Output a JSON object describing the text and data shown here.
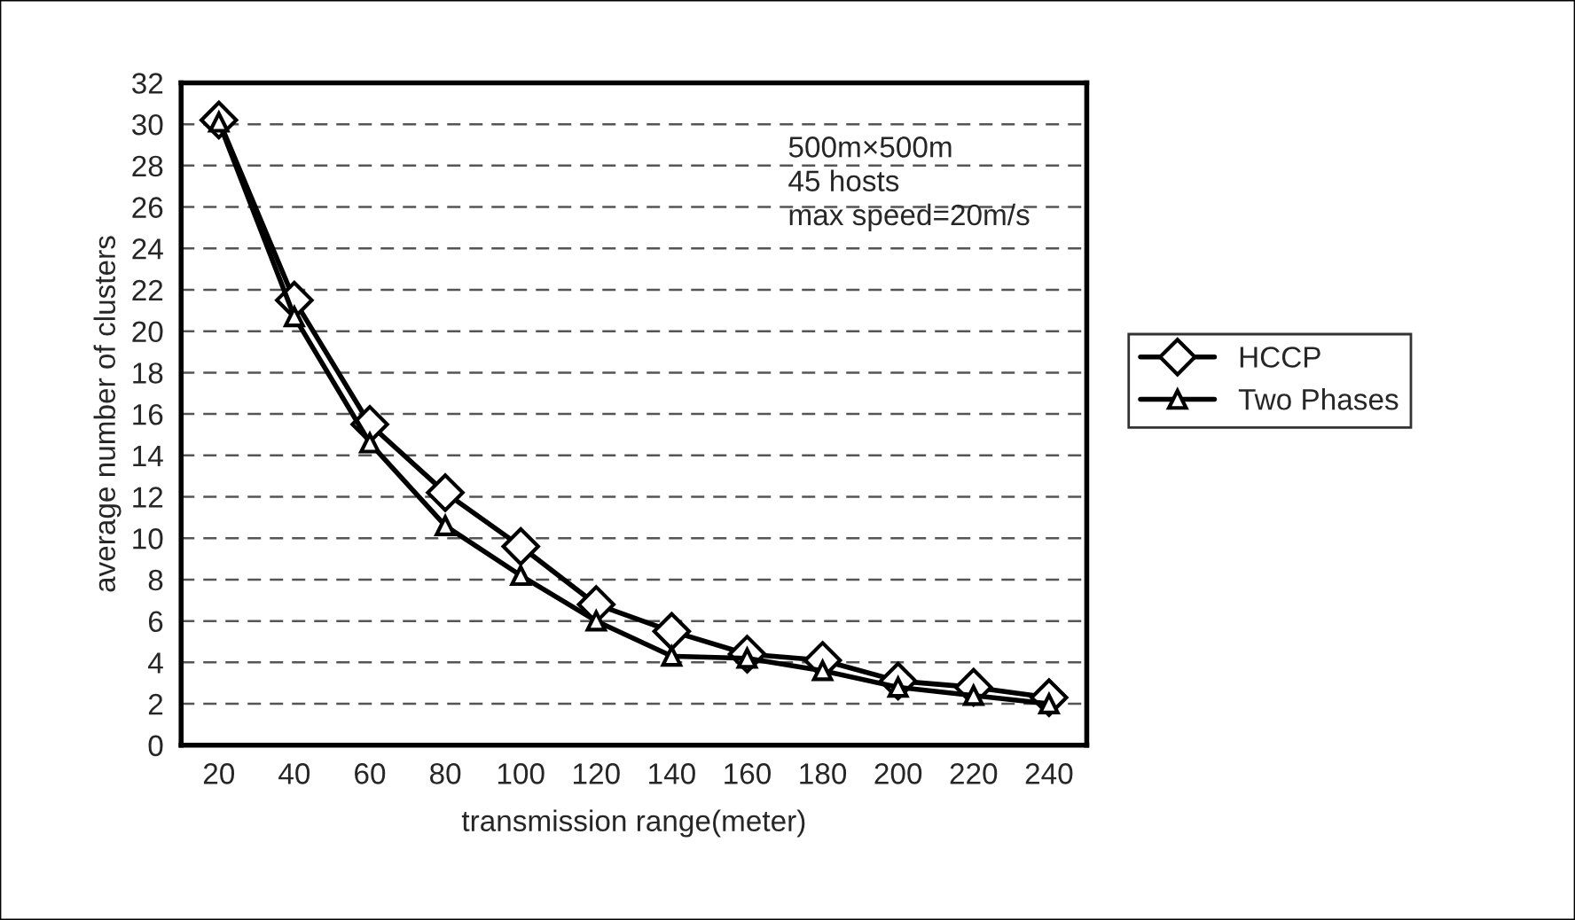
{
  "chart_data": {
    "type": "line",
    "xlabel": "transmission range(meter)",
    "ylabel": "average number of clusters",
    "categories": [
      "20",
      "40",
      "60",
      "80",
      "100",
      "120",
      "140",
      "160",
      "180",
      "200",
      "220",
      "240"
    ],
    "series": [
      {
        "name": "HCCP",
        "color": "#000000",
        "marker": "diamond",
        "values": [
          30.2,
          21.5,
          15.5,
          12.2,
          9.6,
          6.8,
          5.5,
          4.4,
          4.1,
          3.1,
          2.8,
          2.3
        ]
      },
      {
        "name": "Two Phases",
        "color": "#000000",
        "marker": "triangle",
        "values": [
          30.1,
          20.7,
          14.6,
          10.6,
          8.2,
          6.0,
          4.3,
          4.2,
          3.6,
          2.8,
          2.4,
          2.0
        ]
      }
    ],
    "ylim": [
      0,
      32
    ],
    "yticks": [
      0,
      2,
      4,
      6,
      8,
      10,
      12,
      14,
      16,
      18,
      20,
      22,
      24,
      26,
      28,
      30,
      32
    ],
    "grid": "y",
    "legend": "right",
    "annotations": [
      "500m×500m\n45 hosts\nmax speed=20m/s"
    ]
  }
}
